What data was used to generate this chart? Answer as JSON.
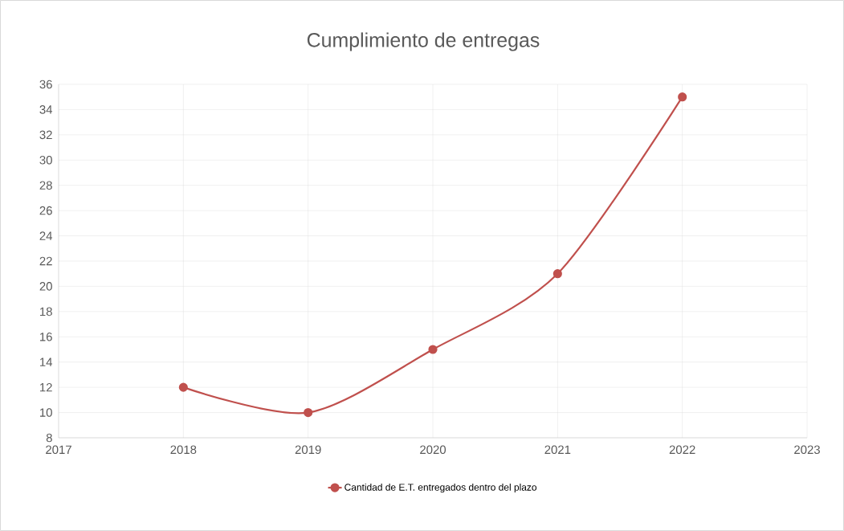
{
  "chart_data": {
    "type": "line",
    "title": "Cumplimiento de entregas",
    "x": [
      2018,
      2019,
      2020,
      2021,
      2022
    ],
    "series": [
      {
        "name": "Cantidad de E.T. entregados dentro del plazo",
        "color": "#c0504d",
        "values": [
          12,
          10,
          15,
          21,
          35
        ]
      }
    ],
    "xlim": [
      2017,
      2023
    ],
    "xticks": [
      2017,
      2018,
      2019,
      2020,
      2021,
      2022,
      2023
    ],
    "ylim": [
      8,
      36
    ],
    "yticks": [
      8,
      10,
      12,
      14,
      16,
      18,
      20,
      22,
      24,
      26,
      28,
      30,
      32,
      34,
      36
    ],
    "grid": true,
    "legend": "bottom",
    "marker": "circle",
    "line_style": "solid"
  }
}
